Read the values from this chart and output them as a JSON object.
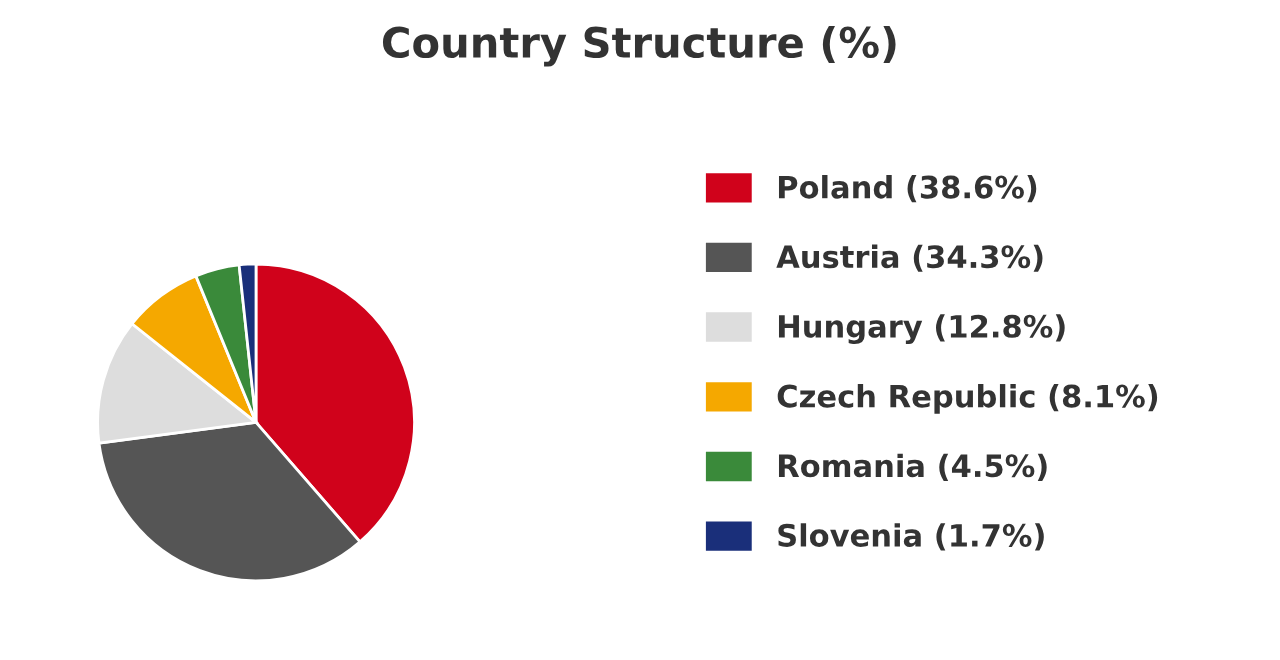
{
  "chart_data": {
    "type": "pie",
    "title": "Country Structure (%)",
    "categories": [
      "Poland (38.6%)",
      "Austria (34.3%)",
      "Hungary (12.8%)",
      "Czech Republic (8.1%)",
      "Romania (4.5%)",
      "Slovenia (1.7%)"
    ],
    "values": [
      38.6,
      34.3,
      12.8,
      8.1,
      4.5,
      1.7
    ],
    "colors": [
      "#d0021b",
      "#555555",
      "#dddddd",
      "#f5a800",
      "#3a8a3a",
      "#1a2f7a"
    ],
    "legend": "right"
  }
}
